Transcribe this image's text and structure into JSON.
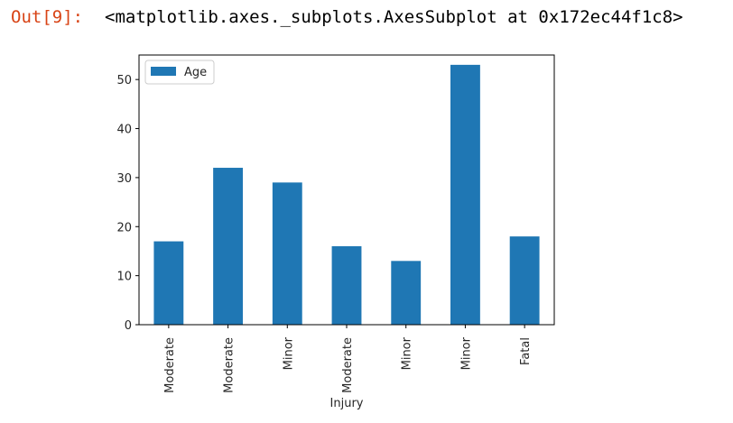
{
  "cell": {
    "prompt": "Out[9]:",
    "repr": "<matplotlib.axes._subplots.AxesSubplot at 0x172ec44f1c8>"
  },
  "colors": {
    "bar": "#1f77b4",
    "prompt": "#d84315"
  },
  "chart_data": {
    "type": "bar",
    "categories": [
      "Moderate",
      "Moderate",
      "Minor",
      "Moderate",
      "Minor",
      "Minor",
      "Fatal"
    ],
    "series": [
      {
        "name": "Age",
        "values": [
          17,
          32,
          29,
          16,
          13,
          53,
          18
        ]
      }
    ],
    "xlabel": "Injury",
    "ylabel": "",
    "ylim": [
      0,
      55
    ],
    "yticks": [
      0,
      10,
      20,
      30,
      40,
      50
    ],
    "legend": "top-left",
    "grid": false,
    "xtick_rotation": 90
  }
}
